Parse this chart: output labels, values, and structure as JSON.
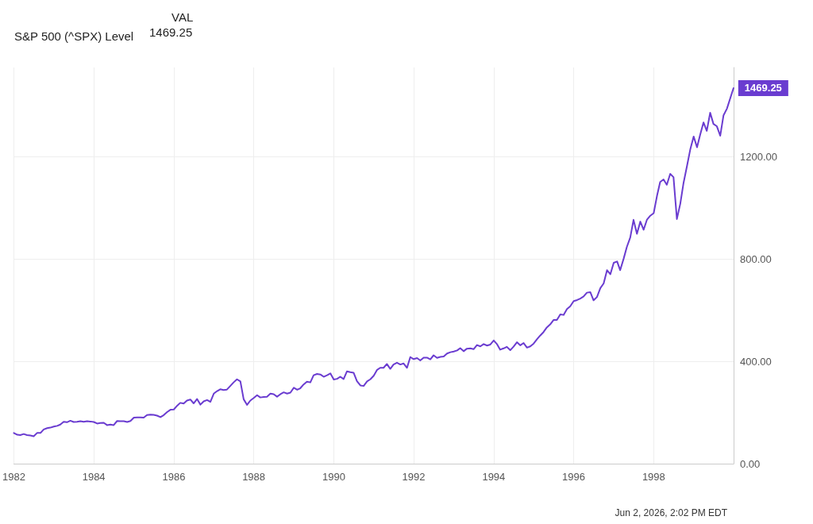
{
  "chart_data": {
    "type": "line",
    "legend_title": "VAL",
    "legend": "top left",
    "grid": true,
    "marker": "none",
    "line_style": "solid",
    "xlim": [
      "1982-01-01",
      "2000-01-01"
    ],
    "xticks": [
      "1982",
      "1984",
      "1986",
      "1988",
      "1990",
      "1992",
      "1994",
      "1996",
      "1998"
    ],
    "ylim": [
      0,
      1550
    ],
    "yticks": [
      {
        "value": 0,
        "label": "0.00"
      },
      {
        "value": 400,
        "label": "400.00"
      },
      {
        "value": 800,
        "label": "800.00"
      },
      {
        "value": 1200,
        "label": "1200.00"
      }
    ],
    "annotations": [
      "1469.25",
      "Jun 2, 2026, 2:02 PM EDT"
    ],
    "x": [
      "1982-01",
      "1982-02",
      "1982-03",
      "1982-04",
      "1982-05",
      "1982-06",
      "1982-07",
      "1982-08",
      "1982-09",
      "1982-10",
      "1982-11",
      "1982-12",
      "1983-01",
      "1983-02",
      "1983-03",
      "1983-04",
      "1983-05",
      "1983-06",
      "1983-07",
      "1983-08",
      "1983-09",
      "1983-10",
      "1983-11",
      "1983-12",
      "1984-01",
      "1984-02",
      "1984-03",
      "1984-04",
      "1984-05",
      "1984-06",
      "1984-07",
      "1984-08",
      "1984-09",
      "1984-10",
      "1984-11",
      "1984-12",
      "1985-01",
      "1985-02",
      "1985-03",
      "1985-04",
      "1985-05",
      "1985-06",
      "1985-07",
      "1985-08",
      "1985-09",
      "1985-10",
      "1985-11",
      "1985-12",
      "1986-01",
      "1986-02",
      "1986-03",
      "1986-04",
      "1986-05",
      "1986-06",
      "1986-07",
      "1986-08",
      "1986-09",
      "1986-10",
      "1986-11",
      "1986-12",
      "1987-01",
      "1987-02",
      "1987-03",
      "1987-04",
      "1987-05",
      "1987-06",
      "1987-07",
      "1987-08",
      "1987-09",
      "1987-10",
      "1987-11",
      "1987-12",
      "1988-01",
      "1988-02",
      "1988-03",
      "1988-04",
      "1988-05",
      "1988-06",
      "1988-07",
      "1988-08",
      "1988-09",
      "1988-10",
      "1988-11",
      "1988-12",
      "1989-01",
      "1989-02",
      "1989-03",
      "1989-04",
      "1989-05",
      "1989-06",
      "1989-07",
      "1989-08",
      "1989-09",
      "1989-10",
      "1989-11",
      "1989-12",
      "1990-01",
      "1990-02",
      "1990-03",
      "1990-04",
      "1990-05",
      "1990-06",
      "1990-07",
      "1990-08",
      "1990-09",
      "1990-10",
      "1990-11",
      "1990-12",
      "1991-01",
      "1991-02",
      "1991-03",
      "1991-04",
      "1991-05",
      "1991-06",
      "1991-07",
      "1991-08",
      "1991-09",
      "1991-10",
      "1991-11",
      "1991-12",
      "1992-01",
      "1992-02",
      "1992-03",
      "1992-04",
      "1992-05",
      "1992-06",
      "1992-07",
      "1992-08",
      "1992-09",
      "1992-10",
      "1992-11",
      "1992-12",
      "1993-01",
      "1993-02",
      "1993-03",
      "1993-04",
      "1993-05",
      "1993-06",
      "1993-07",
      "1993-08",
      "1993-09",
      "1993-10",
      "1993-11",
      "1993-12",
      "1994-01",
      "1994-02",
      "1994-03",
      "1994-04",
      "1994-05",
      "1994-06",
      "1994-07",
      "1994-08",
      "1994-09",
      "1994-10",
      "1994-11",
      "1994-12",
      "1995-01",
      "1995-02",
      "1995-03",
      "1995-04",
      "1995-05",
      "1995-06",
      "1995-07",
      "1995-08",
      "1995-09",
      "1995-10",
      "1995-11",
      "1995-12",
      "1996-01",
      "1996-02",
      "1996-03",
      "1996-04",
      "1996-05",
      "1996-06",
      "1996-07",
      "1996-08",
      "1996-09",
      "1996-10",
      "1996-11",
      "1996-12",
      "1997-01",
      "1997-02",
      "1997-03",
      "1997-04",
      "1997-05",
      "1997-06",
      "1997-07",
      "1997-08",
      "1997-09",
      "1997-10",
      "1997-11",
      "1997-12",
      "1998-01",
      "1998-02",
      "1998-03",
      "1998-04",
      "1998-05",
      "1998-06",
      "1998-07",
      "1998-08",
      "1998-09",
      "1998-10",
      "1998-11",
      "1998-12",
      "1999-01",
      "1999-02",
      "1999-03",
      "1999-04",
      "1999-05",
      "1999-06",
      "1999-07",
      "1999-08",
      "1999-09",
      "1999-10",
      "1999-11",
      "1999-12-31"
    ],
    "series": [
      {
        "name": "S&P 500 (^SPX) Level",
        "color": "#6a3cd0",
        "values": [
          120,
          113,
          112,
          116,
          112,
          110,
          107,
          120,
          120,
          134,
          139,
          141,
          145,
          148,
          153,
          164,
          162,
          168,
          163,
          164,
          166,
          164,
          166,
          165,
          163,
          157,
          159,
          160,
          151,
          153,
          151,
          167,
          166,
          166,
          163,
          167,
          180,
          181,
          181,
          180,
          190,
          192,
          191,
          188,
          182,
          190,
          202,
          211,
          212,
          227,
          238,
          235,
          247,
          251,
          236,
          253,
          231,
          244,
          249,
          242,
          274,
          284,
          291,
          288,
          290,
          304,
          318,
          330,
          322,
          252,
          230,
          247,
          257,
          268,
          259,
          261,
          262,
          274,
          272,
          262,
          272,
          279,
          274,
          278,
          297,
          289,
          295,
          310,
          321,
          318,
          346,
          351,
          349,
          340,
          346,
          353,
          329,
          332,
          340,
          331,
          361,
          358,
          356,
          323,
          306,
          304,
          322,
          330,
          344,
          367,
          375,
          375,
          390,
          371,
          388,
          395,
          388,
          392,
          375,
          417,
          409,
          413,
          404,
          415,
          415,
          408,
          424,
          414,
          418,
          419,
          431,
          436,
          439,
          443,
          452,
          440,
          450,
          451,
          448,
          464,
          459,
          468,
          462,
          466,
          482,
          467,
          446,
          451,
          457,
          444,
          458,
          475,
          463,
          472,
          454,
          459,
          470,
          487,
          501,
          515,
          533,
          545,
          562,
          562,
          584,
          582,
          605,
          616,
          636,
          640,
          646,
          654,
          669,
          671,
          639,
          652,
          687,
          705,
          757,
          741,
          786,
          791,
          757,
          801,
          848,
          885,
          954,
          899,
          947,
          915,
          955,
          970,
          980,
          1049,
          1102,
          1112,
          1091,
          1134,
          1121,
          957,
          1017,
          1099,
          1164,
          1229,
          1280,
          1238,
          1286,
          1335,
          1302,
          1373,
          1329,
          1320,
          1283,
          1363,
          1389,
          1469.25
        ],
        "value_labels": [
          null,
          null,
          null,
          null,
          null,
          null,
          null,
          null,
          null,
          null,
          null,
          null,
          null,
          null,
          null,
          null,
          null,
          null,
          null,
          null,
          null,
          null,
          null,
          null,
          null,
          null,
          null,
          null,
          null,
          null,
          null,
          null,
          null,
          null,
          null,
          null,
          null,
          null,
          null,
          null,
          null,
          null,
          null,
          null,
          null,
          null,
          null,
          null,
          null,
          null,
          null,
          null,
          null,
          null,
          null,
          null,
          null,
          null,
          null,
          null,
          null,
          null,
          null,
          null,
          null,
          null,
          null,
          null,
          null,
          null,
          null,
          null,
          null,
          null,
          null,
          null,
          null,
          null,
          null,
          null,
          null,
          null,
          null,
          null,
          null,
          null,
          null,
          null,
          null,
          null,
          null,
          null,
          null,
          null,
          null,
          null,
          null,
          null,
          null,
          null,
          null,
          null,
          null,
          null,
          null,
          null,
          null,
          null,
          null,
          null,
          null,
          null,
          null,
          null,
          null,
          null,
          null,
          null,
          null,
          null,
          null,
          null,
          null,
          null,
          null,
          null,
          null,
          null,
          null,
          null,
          null,
          null,
          null,
          null,
          null,
          null,
          null,
          null,
          null,
          null,
          null,
          null,
          null,
          null,
          null,
          null,
          null,
          null,
          null,
          null,
          null,
          null,
          null,
          null,
          null,
          null,
          null,
          null,
          null,
          null,
          null,
          null,
          null,
          null,
          null,
          null,
          null,
          null,
          null,
          null,
          null,
          null,
          null,
          null,
          null,
          null,
          null,
          null,
          null,
          null,
          null,
          null,
          null,
          null,
          null,
          null,
          null,
          null,
          null,
          null,
          null,
          null,
          null,
          null,
          null,
          null,
          null,
          null,
          null,
          null,
          null,
          null,
          null,
          null,
          null,
          null,
          null,
          null,
          null,
          null,
          null,
          null,
          null,
          null,
          null,
          "1469.25"
        ]
      }
    ]
  }
}
